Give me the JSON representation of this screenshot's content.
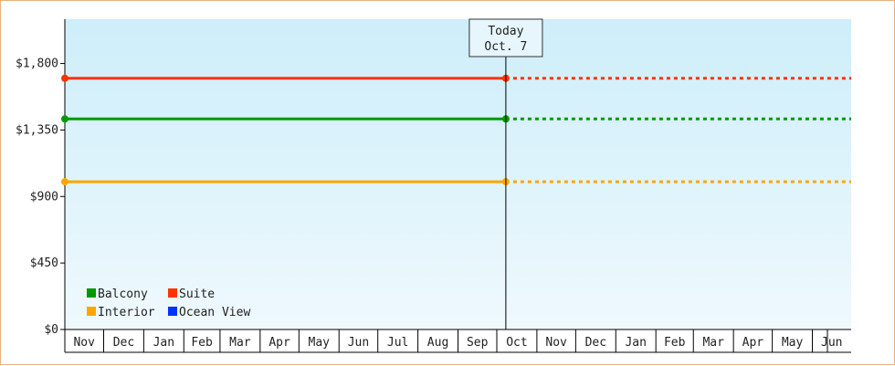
{
  "chart_data": {
    "type": "line",
    "title": "",
    "xlabel": "",
    "ylabel": "",
    "ylim": [
      0,
      2100
    ],
    "yticks": [
      0,
      450,
      900,
      1350,
      1800
    ],
    "ytick_labels": [
      "$0",
      "$450",
      "$900",
      "$1,350",
      "$1,800"
    ],
    "months": [
      "Nov",
      "Dec",
      "Jan",
      "Feb",
      "Mar",
      "Apr",
      "May",
      "Jun",
      "Jul",
      "Aug",
      "Sep",
      "Oct",
      "Nov",
      "Dec",
      "Jan",
      "Feb",
      "Mar",
      "Apr",
      "May",
      "Jun"
    ],
    "month_widths": [
      30,
      31,
      31,
      28,
      31,
      30,
      31,
      30,
      31,
      31,
      30,
      31,
      30,
      31,
      31,
      29,
      31,
      30,
      31,
      30
    ],
    "today_index": 11,
    "today_day": 7,
    "today_label_line1": "Today",
    "today_label_line2": "Oct. 7",
    "grid": false,
    "legend_position": "bottom-left",
    "series": [
      {
        "name": "Suite",
        "value": 1700,
        "color": "#ff3300"
      },
      {
        "name": "Balcony",
        "value": 1425,
        "color": "#009900"
      },
      {
        "name": "Interior",
        "value": 1000,
        "color": "#ffa500"
      },
      {
        "name": "Ocean View",
        "value": null,
        "color": "#0033ff"
      }
    ],
    "legend": [
      {
        "name": "Balcony",
        "color": "#009900"
      },
      {
        "name": "Suite",
        "color": "#ff3300"
      },
      {
        "name": "Interior",
        "color": "#ffa500"
      },
      {
        "name": "Ocean View",
        "color": "#0033ff"
      }
    ]
  }
}
